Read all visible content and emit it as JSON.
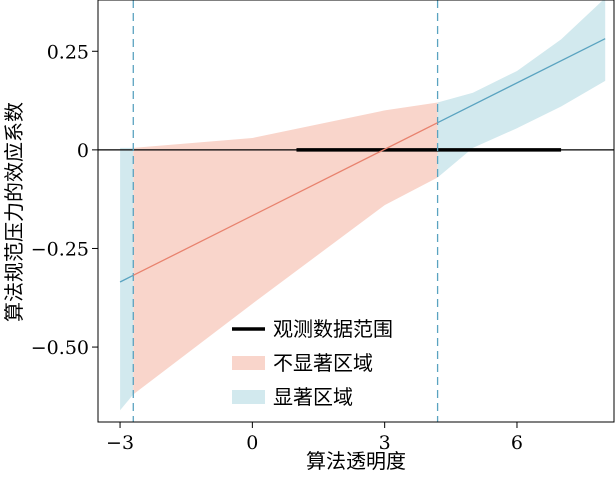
{
  "chart_data": {
    "type": "line",
    "xlabel": "算法透明度",
    "ylabel": "算法规范压力的效应系数",
    "xlim": [
      -3.5,
      8.2
    ],
    "ylim": [
      -0.69,
      0.38
    ],
    "x_ticks": [
      {
        "value": -3,
        "label": "−3"
      },
      {
        "value": 0,
        "label": "0"
      },
      {
        "value": 3,
        "label": "3"
      },
      {
        "value": 6,
        "label": "6"
      }
    ],
    "y_ticks": [
      {
        "value": 0.25,
        "label": "0.25"
      },
      {
        "value": 0,
        "label": "0"
      },
      {
        "value": -0.25,
        "label": "−0.25"
      },
      {
        "value": -0.5,
        "label": "−0.50"
      }
    ],
    "effect_line": {
      "x": [
        -3,
        8
      ],
      "y": [
        -0.335,
        0.282
      ]
    },
    "confidence_band": {
      "x": [
        -3,
        -2.7,
        0,
        3,
        4.2,
        5,
        6,
        7,
        8
      ],
      "lower": [
        -0.66,
        -0.62,
        -0.39,
        -0.14,
        -0.07,
        0.005,
        0.055,
        0.11,
        0.175
      ],
      "upper": [
        0.005,
        0.005,
        0.03,
        0.1,
        0.12,
        0.145,
        0.2,
        0.28,
        0.385
      ]
    },
    "significance_thresholds": [
      -2.7,
      4.2
    ],
    "zero_line": 0,
    "observed_range": [
      1,
      7
    ],
    "colors": {
      "line_nonsig": "#e8826e",
      "line_sig": "#5aa3c0",
      "band_nonsig": "#f9d5cb",
      "band_sig": "#d2e9ee",
      "threshold": "#5aa3c0",
      "observed": "#000000"
    },
    "legend": {
      "position": "bottom-center",
      "items": [
        {
          "label": "观测数据范围",
          "kind": "line",
          "color": "#000000"
        },
        {
          "label": "不显著区域",
          "kind": "patch",
          "color": "#f9d5cb"
        },
        {
          "label": "显著区域",
          "kind": "patch",
          "color": "#d2e9ee"
        }
      ]
    }
  }
}
